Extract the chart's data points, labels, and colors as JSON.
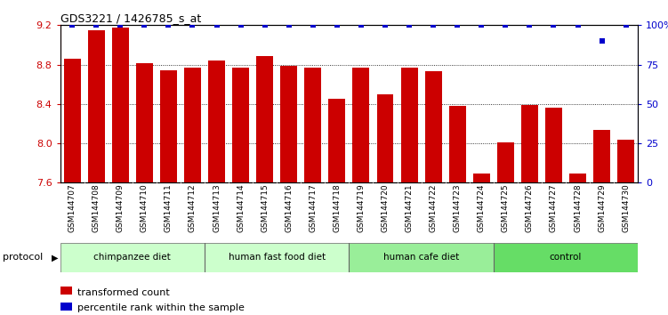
{
  "title": "GDS3221 / 1426785_s_at",
  "samples": [
    "GSM144707",
    "GSM144708",
    "GSM144709",
    "GSM144710",
    "GSM144711",
    "GSM144712",
    "GSM144713",
    "GSM144714",
    "GSM144715",
    "GSM144716",
    "GSM144717",
    "GSM144718",
    "GSM144719",
    "GSM144720",
    "GSM144721",
    "GSM144722",
    "GSM144723",
    "GSM144724",
    "GSM144725",
    "GSM144726",
    "GSM144727",
    "GSM144728",
    "GSM144729",
    "GSM144730"
  ],
  "bar_values": [
    8.86,
    9.15,
    9.18,
    8.81,
    8.74,
    8.77,
    8.84,
    8.77,
    8.89,
    8.79,
    8.77,
    8.45,
    8.77,
    8.5,
    8.77,
    8.73,
    8.38,
    7.69,
    8.01,
    8.39,
    8.36,
    7.69,
    8.14,
    8.04
  ],
  "percentile_values": [
    100,
    100,
    100,
    100,
    100,
    100,
    100,
    100,
    100,
    100,
    100,
    100,
    100,
    100,
    100,
    100,
    100,
    100,
    100,
    100,
    100,
    100,
    90,
    100
  ],
  "bar_color": "#cc0000",
  "percentile_color": "#0000cc",
  "ylim_left": [
    7.6,
    9.2
  ],
  "ylim_right": [
    0,
    100
  ],
  "yticks_left": [
    7.6,
    8.0,
    8.4,
    8.8,
    9.2
  ],
  "yticks_right": [
    0,
    25,
    50,
    75,
    100
  ],
  "groups": [
    {
      "label": "chimpanzee diet",
      "start": 0,
      "end": 6,
      "color": "#ccffcc"
    },
    {
      "label": "human fast food diet",
      "start": 6,
      "end": 12,
      "color": "#ccffcc"
    },
    {
      "label": "human cafe diet",
      "start": 12,
      "end": 18,
      "color": "#99ee99"
    },
    {
      "label": "control",
      "start": 18,
      "end": 24,
      "color": "#66dd66"
    }
  ],
  "group_dividers": [
    6,
    12,
    18
  ],
  "legend_items": [
    {
      "label": "transformed count",
      "color": "#cc0000"
    },
    {
      "label": "percentile rank within the sample",
      "color": "#0000cc"
    }
  ],
  "protocol_label": "protocol",
  "tick_label_color_left": "#cc0000",
  "tick_label_color_right": "#0000cc",
  "tick_area_color": "#cccccc",
  "spine_color": "#000000"
}
